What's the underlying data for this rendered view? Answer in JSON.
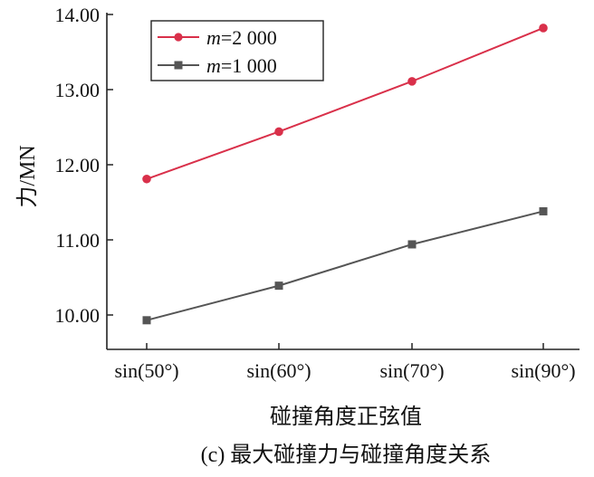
{
  "chart_data": {
    "type": "line",
    "categories": [
      "sin(50°)",
      "sin(60°)",
      "sin(70°)",
      "sin(90°)"
    ],
    "series": [
      {
        "name": "m=2 000",
        "name_var": "m",
        "name_rest": "=2 000",
        "values": [
          11.81,
          12.44,
          13.11,
          13.82
        ],
        "color": "#d9304a",
        "marker": "circle"
      },
      {
        "name": "m=1 000",
        "name_var": "m",
        "name_rest": "=1 000",
        "values": [
          9.93,
          10.39,
          10.94,
          11.38
        ],
        "color": "#555555",
        "marker": "square"
      }
    ],
    "ylim": [
      9.6,
      14.0
    ],
    "yticks": [
      "10.00",
      "11.00",
      "12.00",
      "13.00",
      "14.00"
    ],
    "ylabel": "力/MN",
    "xlabel": "碰撞角度正弦值",
    "legend_position": "top-left",
    "grid": false
  },
  "caption": "(c) 最大碰撞力与碰撞角度关系"
}
